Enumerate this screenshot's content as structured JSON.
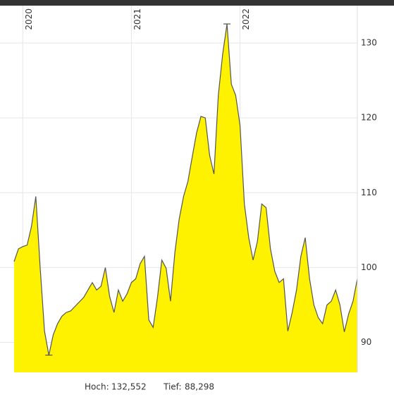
{
  "chart_data": {
    "type": "area",
    "categories": [
      null,
      null,
      "2020",
      null,
      null,
      null,
      null,
      null,
      null,
      null,
      null,
      null,
      null,
      null,
      null,
      null,
      null,
      null,
      null,
      null,
      null,
      null,
      null,
      null,
      null,
      null,
      null,
      "2021",
      null,
      null,
      null,
      null,
      null,
      null,
      null,
      null,
      null,
      null,
      null,
      null,
      null,
      null,
      null,
      null,
      null,
      null,
      null,
      null,
      null,
      null,
      null,
      null,
      "2022",
      null,
      null,
      null,
      null,
      null,
      null,
      null,
      null,
      null,
      null,
      null,
      null,
      null,
      null,
      null,
      null,
      null,
      null,
      null,
      null,
      null,
      null,
      null,
      null,
      null,
      null,
      null
    ],
    "series": [
      {
        "color": "#fff200",
        "line_color": "#555555",
        "values": [
          100.8,
          102.5,
          102.8,
          103,
          105.5,
          109.5,
          100,
          91.5,
          88.298,
          91,
          92.5,
          93.5,
          94,
          94.2,
          94.8,
          95.4,
          96,
          97,
          98,
          97,
          97.5,
          100,
          96.1,
          94,
          97,
          95.5,
          96.5,
          98,
          98.5,
          100.5,
          101.5,
          93,
          92,
          96,
          101,
          99.9,
          95.5,
          102,
          106.5,
          109.5,
          111.5,
          114.8,
          118,
          120.2,
          120,
          115,
          112.5,
          123,
          128.5,
          132.552,
          124.5,
          123,
          119,
          108.5,
          104,
          101,
          103.5,
          108.5,
          108,
          102.5,
          99.5,
          98,
          98.5,
          91.5,
          94,
          97,
          101.5,
          104,
          98.5,
          95,
          93.3,
          92.5,
          95,
          95.5,
          97,
          95,
          91.4,
          93.8,
          95.5,
          98.5
        ]
      }
    ],
    "ylim": [
      86,
      135
    ],
    "yticks": [
      90,
      100,
      110,
      120,
      130
    ],
    "grid": true,
    "footer": {
      "high_label": "Hoch:",
      "high": "132,552",
      "low_label": "Tief:",
      "low": "88,298"
    }
  }
}
